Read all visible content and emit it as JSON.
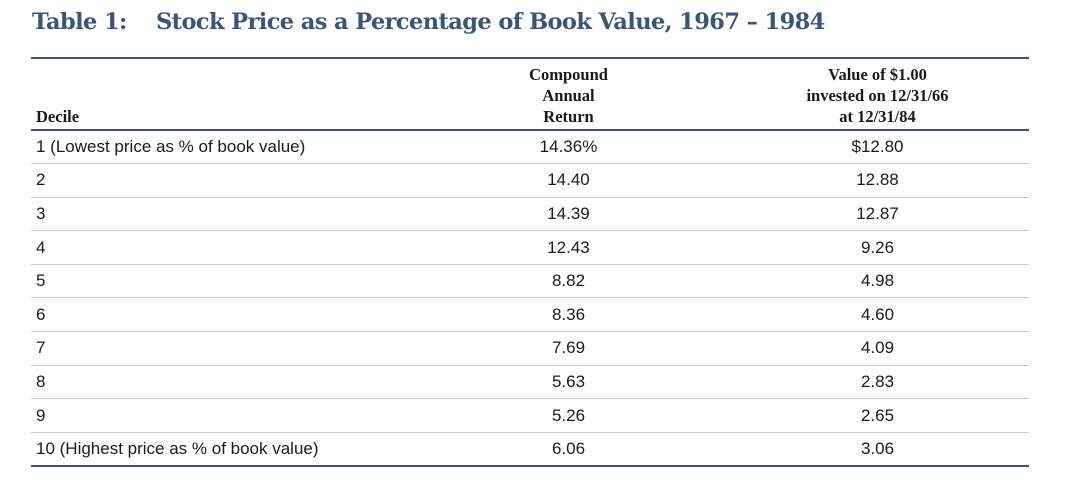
{
  "title": {
    "label": "Table 1:",
    "text": "Stock Price as a Percentage of Book Value, 1967 – 1984"
  },
  "table": {
    "headers": {
      "decile": "Decile",
      "return_lines": [
        "Compound",
        "Annual",
        "Return"
      ],
      "value_lines": [
        "Value of $1.00",
        "invested on 12/31/66",
        "at 12/31/84"
      ]
    },
    "rows": [
      {
        "decile": "1 (Lowest price as % of book value)",
        "return": "14.36%",
        "value": "$12.80"
      },
      {
        "decile": "2",
        "return": "14.40",
        "value": "12.88"
      },
      {
        "decile": "3",
        "return": "14.39",
        "value": "12.87"
      },
      {
        "decile": "4",
        "return": "12.43",
        "value": "9.26"
      },
      {
        "decile": "5",
        "return": "8.82",
        "value": "4.98"
      },
      {
        "decile": "6",
        "return": "8.36",
        "value": "4.60"
      },
      {
        "decile": "7",
        "return": "7.69",
        "value": "4.09"
      },
      {
        "decile": "8",
        "return": "5.63",
        "value": "2.83"
      },
      {
        "decile": "9",
        "return": "5.26",
        "value": "2.65"
      },
      {
        "decile": "10 (Highest price as % of book value)",
        "return": "6.06",
        "value": "3.06"
      }
    ]
  },
  "colors": {
    "title": "#3a5577",
    "rule_heavy": "#3d5270",
    "rule_light": "#c8c8c8",
    "text": "#1a1a1a"
  }
}
